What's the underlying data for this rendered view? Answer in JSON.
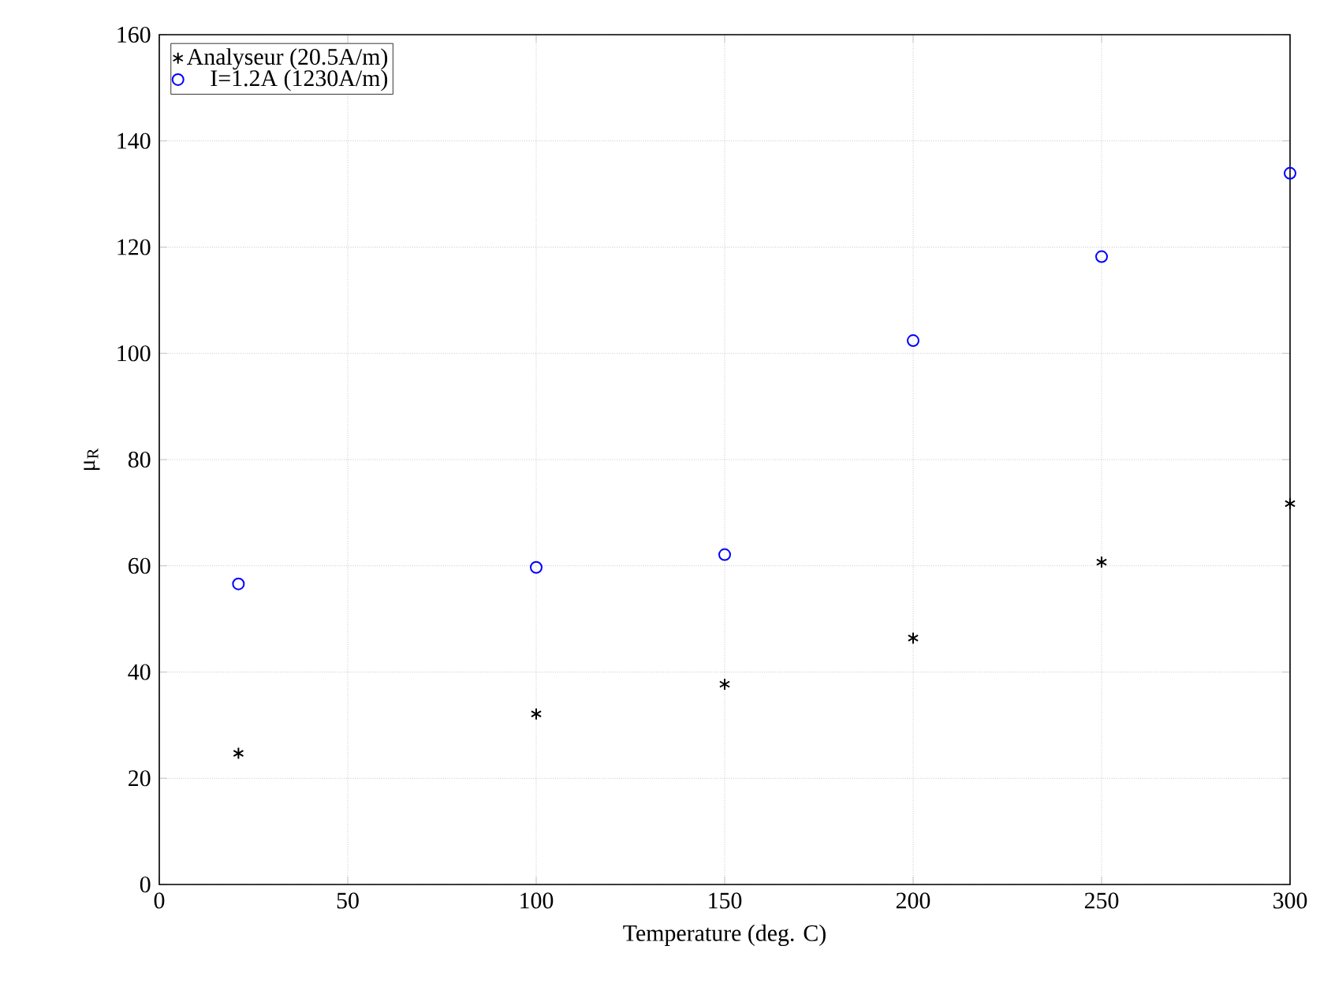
{
  "chart_data": {
    "type": "scatter",
    "xlabel": "Temperature (deg. C)",
    "ylabel": "μ$_{R}$",
    "x": [
      21,
      100,
      150,
      200,
      250,
      300
    ],
    "series": [
      {
        "name": "Analyseur (20.5A/m)",
        "color": "#000000",
        "marker": "cross",
        "values": [
          24.7,
          32.1,
          37.7,
          46.4,
          60.7,
          71.7
        ]
      },
      {
        "name": "I=1.2A (1230A/m)",
        "color": "#0000ff",
        "marker": "circle",
        "values": [
          56.6,
          59.7,
          62.1,
          102.4,
          118.2,
          133.9
        ]
      }
    ],
    "xlim": [
      0,
      300
    ],
    "ylim": [
      0,
      160
    ],
    "xticks": [
      0,
      50,
      100,
      150,
      200,
      250,
      300
    ],
    "yticks": [
      0,
      20,
      40,
      60,
      80,
      100,
      120,
      140,
      160
    ],
    "grid": true,
    "legend": "top left"
  }
}
